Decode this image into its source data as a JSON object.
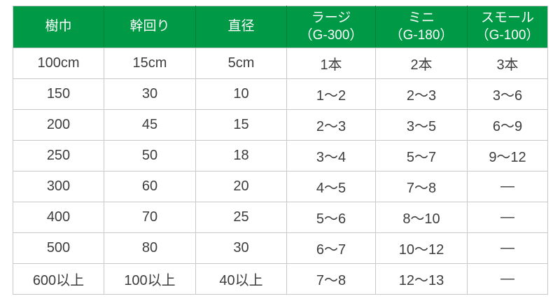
{
  "colors": {
    "header_bg": "#009945",
    "header_separator": "#00803a",
    "cell_border": "#c9c9c9",
    "header_text": "#ffffff",
    "body_text": "#3d3d3d"
  },
  "chart_data": {
    "type": "table",
    "title": "",
    "columns": [
      {
        "label": "樹巾",
        "sublabel": ""
      },
      {
        "label": "幹回り",
        "sublabel": ""
      },
      {
        "label": "直径",
        "sublabel": ""
      },
      {
        "label": "ラージ",
        "sublabel": "（G-300）"
      },
      {
        "label": "ミニ",
        "sublabel": "（G-180）"
      },
      {
        "label": "スモール",
        "sublabel": "（G-100）"
      }
    ],
    "rows": [
      [
        "100cm",
        "15cm",
        "5cm",
        "1本",
        "2本",
        "3本"
      ],
      [
        "150",
        "30",
        "10",
        "1〜2",
        "2〜3",
        "3〜6"
      ],
      [
        "200",
        "45",
        "15",
        "2〜3",
        "3〜5",
        "6〜9"
      ],
      [
        "250",
        "50",
        "18",
        "3〜4",
        "5〜7",
        "9〜12"
      ],
      [
        "300",
        "60",
        "20",
        "4〜5",
        "7〜8",
        "—"
      ],
      [
        "400",
        "70",
        "25",
        "5〜6",
        "8〜10",
        "—"
      ],
      [
        "500",
        "80",
        "30",
        "6〜7",
        "10〜12",
        "—"
      ],
      [
        "600以上",
        "100以上",
        "40以上",
        "7〜8",
        "12〜13",
        "—"
      ]
    ]
  }
}
